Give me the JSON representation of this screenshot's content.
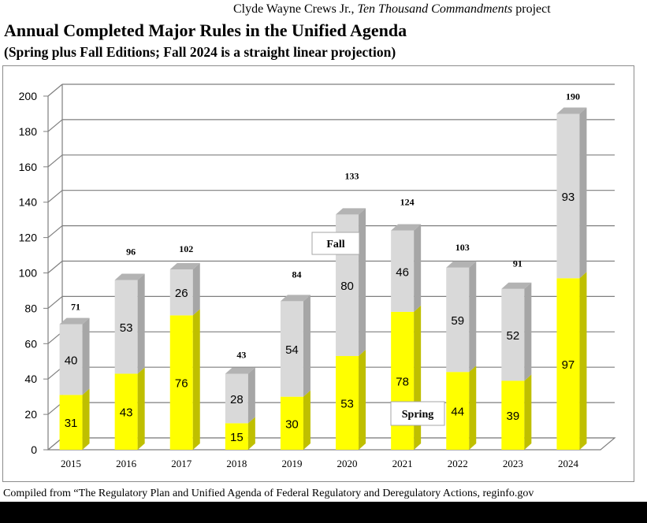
{
  "header": {
    "credit_author": "Clyde Wayne Crews Jr.,",
    "credit_project": "Ten Thousand Commandments",
    "credit_suffix": "project"
  },
  "chart_data": {
    "type": "bar",
    "stacked": true,
    "title": "Annual Completed Major Rules in the Unified Agenda",
    "subtitle": "(Spring plus Fall Editions; Fall 2024 is a straight linear projection)",
    "categories": [
      "2015",
      "2016",
      "2017",
      "2018",
      "2019",
      "2020",
      "2021",
      "2022",
      "2023",
      "2024"
    ],
    "series": [
      {
        "name": "Spring",
        "color": "#ffff00",
        "values": [
          31,
          43,
          76,
          15,
          30,
          53,
          78,
          44,
          39,
          97
        ]
      },
      {
        "name": "Fall",
        "color": "#d9d9d9",
        "values": [
          40,
          53,
          26,
          28,
          54,
          80,
          46,
          59,
          52,
          93
        ]
      }
    ],
    "totals": [
      71,
      96,
      102,
      43,
      84,
      133,
      124,
      103,
      91,
      190
    ],
    "ylim": [
      0,
      200
    ],
    "yticks": [
      0,
      20,
      40,
      60,
      80,
      100,
      120,
      140,
      160,
      180,
      200
    ],
    "grid": true,
    "legend_labels": [
      "Fall",
      "Spring"
    ],
    "xlabel": "",
    "ylabel": ""
  },
  "footer": {
    "source": "Compiled from “The Regulatory Plan and Unified Agenda of Federal Regulatory and Deregulatory Actions, reginfo.gov"
  }
}
